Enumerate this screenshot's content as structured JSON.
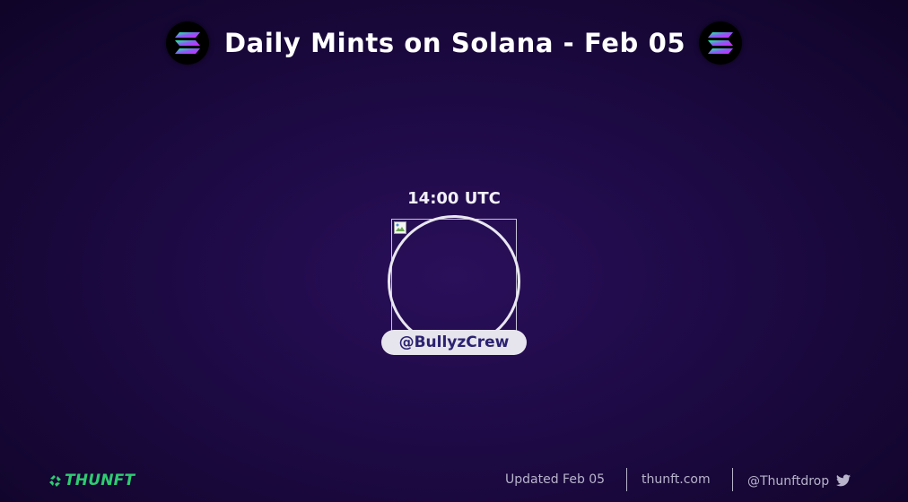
{
  "header": {
    "title": "Daily Mints on Solana - Feb 05",
    "left_icon": "solana-logo-icon",
    "right_icon": "solana-logo-icon"
  },
  "mint": {
    "time": "14:00 UTC",
    "handle": "@BullyzCrew",
    "image_icon": "broken-image-icon"
  },
  "footer": {
    "brand": "THUNFT",
    "brand_icon": "recycle-arrows-icon",
    "updated": "Updated Feb 05",
    "site": "thunft.com",
    "twitter_handle": "@Thunftdrop",
    "twitter_icon": "twitter-bird-icon"
  },
  "colors": {
    "background": "#1d0a44",
    "brand_green": "#2ecc71",
    "handle_text": "#2a2270",
    "handle_pill": "#e6e4ec",
    "footer_text": "#b9b4cc"
  }
}
